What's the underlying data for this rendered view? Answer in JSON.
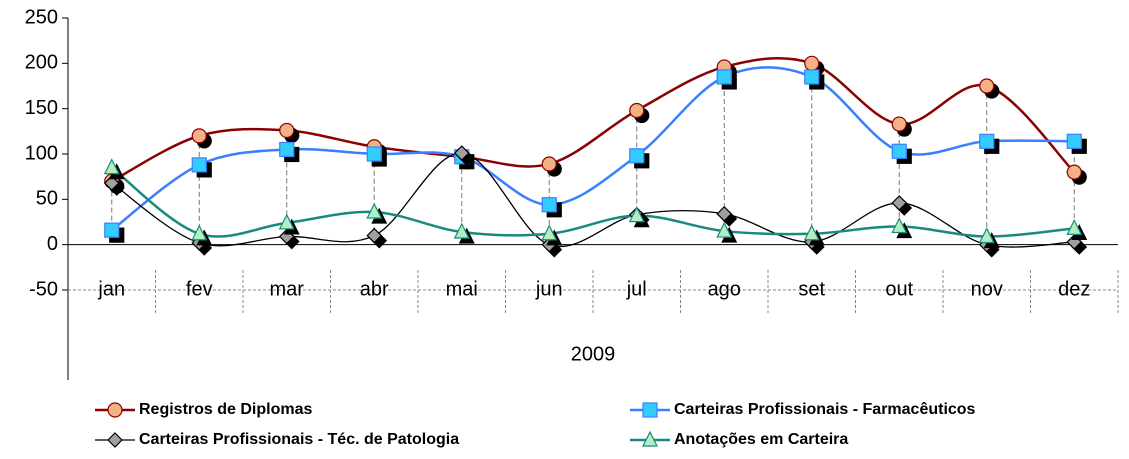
{
  "chart_data": {
    "type": "line",
    "smooth": true,
    "categories": [
      "jan",
      "fev",
      "mar",
      "abr",
      "mai",
      "jun",
      "jul",
      "ago",
      "set",
      "out",
      "nov",
      "dez"
    ],
    "x_group_label": "2009",
    "series": [
      {
        "name": "Registros de Diplomas",
        "color": "#8b0000",
        "marker": "circle",
        "marker_fill": "#f4b183",
        "values": [
          70,
          120,
          126,
          108,
          97,
          89,
          148,
          196,
          200,
          133,
          175,
          80
        ]
      },
      {
        "name": "Carteiras Profissionais - Farmacêuticos",
        "color": "#3a7fff",
        "marker": "square",
        "marker_fill": "#33ccff",
        "values": [
          16,
          88,
          105,
          100,
          97,
          44,
          98,
          185,
          185,
          103,
          114,
          114
        ]
      },
      {
        "name": "Carteiras Profissionais - Téc. de Patologia",
        "color": "#000000",
        "marker": "diamond",
        "marker_fill": "#a0a0a0",
        "values": [
          68,
          2,
          9,
          10,
          101,
          0,
          33,
          34,
          3,
          46,
          0,
          3
        ]
      },
      {
        "name": "Anotações em Carteira",
        "color": "#1a8a80",
        "marker": "triangle",
        "marker_fill": "#b3f0c0",
        "values": [
          85,
          12,
          24,
          36,
          14,
          12,
          32,
          15,
          12,
          20,
          9,
          18
        ]
      }
    ],
    "ylim": [
      -50,
      250
    ],
    "yticks": [
      -50,
      0,
      50,
      100,
      150,
      200,
      250
    ],
    "grid": false,
    "legend": "bottom",
    "drop_lines": true
  }
}
